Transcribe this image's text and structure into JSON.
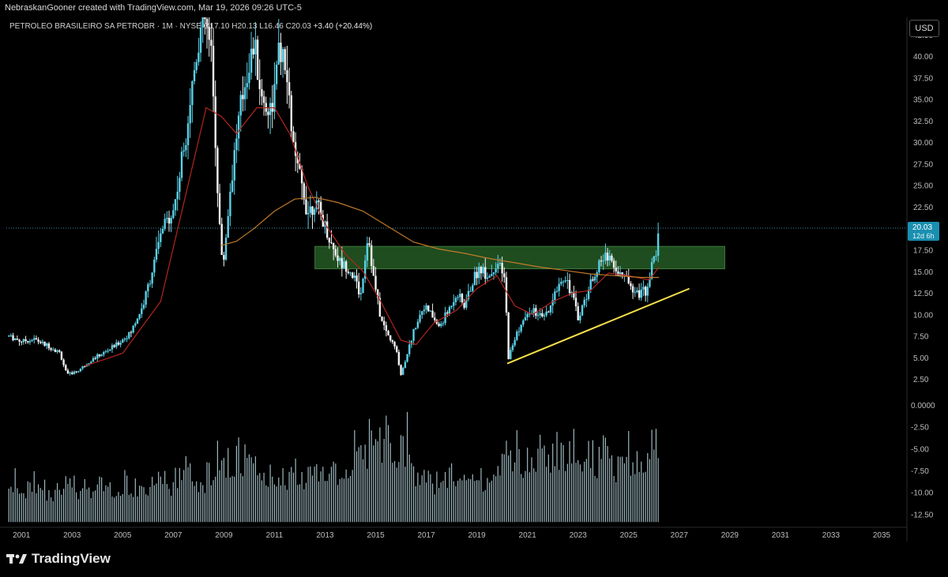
{
  "header": {
    "author_line": "NebraskanGooner created with TradingView.com, Mar 19, 2026 09:26 UTC-5"
  },
  "legend": {
    "symbol": "PETROLEO BRASILEIRO SA PETROBR · 1M · NYSE",
    "o_label": "O",
    "o_value": "17.10",
    "h_label": "H",
    "h_value": "20.13",
    "l_label": "L",
    "l_value": "16.46",
    "c_label": "C",
    "c_value": "20.03",
    "change": "+3.40 (+20.44%)"
  },
  "currency_button": "USD",
  "price_tag": {
    "value": "20.03",
    "countdown": "12d 6h"
  },
  "brand": {
    "name": "TradingView"
  },
  "colors": {
    "up": "#5ad1e8",
    "down": "#f2f2f2",
    "ma_fast": "#b3261e",
    "ma_slow": "#c07a2a",
    "zone": "#1f4d1f",
    "trendline": "#f5e04a",
    "volume": "#b9d8e0"
  },
  "chart_data": {
    "type": "candlestick",
    "timeframe": "1M",
    "x_ticks": [
      "2001",
      "2003",
      "2005",
      "2007",
      "2009",
      "2011",
      "2013",
      "2015",
      "2017",
      "2019",
      "2021",
      "2023",
      "2025",
      "2027",
      "2029",
      "2031",
      "2033",
      "2035"
    ],
    "price_ticks": [
      "42.50",
      "40.00",
      "37.50",
      "35.00",
      "32.50",
      "30.00",
      "27.50",
      "25.00",
      "22.50",
      "20.00",
      "17.50",
      "15.00",
      "12.50",
      "10.00",
      "7.50",
      "5.00",
      "2.50"
    ],
    "osc_ticks": [
      "0.0000",
      "-2.50",
      "-5.00",
      "-7.50",
      "-10.00",
      "-12.50"
    ],
    "price_ylim": [
      0.5,
      44.5
    ],
    "osc_ylim": [
      -14.0,
      1.0
    ],
    "xlim": [
      2000.4,
      2036.0
    ],
    "price_path": [
      [
        2000.5,
        7.5
      ],
      [
        2001.0,
        6.9
      ],
      [
        2001.5,
        7.1
      ],
      [
        2002.0,
        6.4
      ],
      [
        2002.5,
        5.6
      ],
      [
        2002.8,
        3.0
      ],
      [
        2003.2,
        3.4
      ],
      [
        2003.8,
        4.8
      ],
      [
        2004.3,
        5.6
      ],
      [
        2004.8,
        6.6
      ],
      [
        2005.3,
        7.8
      ],
      [
        2005.8,
        11.0
      ],
      [
        2006.2,
        15.5
      ],
      [
        2006.6,
        20.2
      ],
      [
        2007.0,
        22.0
      ],
      [
        2007.3,
        27.0
      ],
      [
        2007.6,
        33.5
      ],
      [
        2007.9,
        40.0
      ],
      [
        2008.2,
        45.0
      ],
      [
        2008.5,
        40.0
      ],
      [
        2008.8,
        22.0
      ],
      [
        2008.95,
        15.0
      ],
      [
        2009.3,
        26.0
      ],
      [
        2009.6,
        33.0
      ],
      [
        2009.9,
        38.0
      ],
      [
        2010.2,
        41.5
      ],
      [
        2010.5,
        35.0
      ],
      [
        2010.8,
        33.5
      ],
      [
        2011.0,
        36.0
      ],
      [
        2011.2,
        41.0
      ],
      [
        2011.5,
        37.0
      ],
      [
        2011.8,
        28.0
      ],
      [
        2012.0,
        26.0
      ],
      [
        2012.3,
        22.0
      ],
      [
        2012.6,
        23.0
      ],
      [
        2012.9,
        21.0
      ],
      [
        2013.2,
        18.5
      ],
      [
        2013.6,
        16.0
      ],
      [
        2013.9,
        15.5
      ],
      [
        2014.2,
        14.0
      ],
      [
        2014.4,
        12.0
      ],
      [
        2014.7,
        19.5
      ],
      [
        2014.9,
        14.5
      ],
      [
        2015.2,
        9.5
      ],
      [
        2015.5,
        7.5
      ],
      [
        2015.8,
        6.0
      ],
      [
        2016.0,
        3.0
      ],
      [
        2016.3,
        6.0
      ],
      [
        2016.6,
        9.0
      ],
      [
        2016.9,
        11.0
      ],
      [
        2017.2,
        10.0
      ],
      [
        2017.5,
        8.5
      ],
      [
        2017.8,
        10.0
      ],
      [
        2018.2,
        12.5
      ],
      [
        2018.5,
        11.0
      ],
      [
        2018.8,
        13.5
      ],
      [
        2019.1,
        15.5
      ],
      [
        2019.5,
        14.5
      ],
      [
        2019.8,
        16.0
      ],
      [
        2020.1,
        14.0
      ],
      [
        2020.25,
        5.0
      ],
      [
        2020.6,
        8.0
      ],
      [
        2020.9,
        9.5
      ],
      [
        2021.2,
        10.5
      ],
      [
        2021.6,
        9.5
      ],
      [
        2021.9,
        10.5
      ],
      [
        2022.2,
        13.5
      ],
      [
        2022.5,
        14.5
      ],
      [
        2022.8,
        12.0
      ],
      [
        2023.0,
        9.5
      ],
      [
        2023.3,
        12.0
      ],
      [
        2023.6,
        14.5
      ],
      [
        2023.9,
        16.0
      ],
      [
        2024.2,
        17.2
      ],
      [
        2024.5,
        15.0
      ],
      [
        2024.8,
        14.5
      ],
      [
        2025.1,
        13.5
      ],
      [
        2025.4,
        12.5
      ],
      [
        2025.7,
        12.8
      ],
      [
        2025.9,
        15.5
      ],
      [
        2026.1,
        17.2
      ],
      [
        2026.2,
        20.03
      ]
    ],
    "ma_fast_path": [
      [
        2003.5,
        4.0
      ],
      [
        2005.0,
        5.5
      ],
      [
        2006.5,
        11.5
      ],
      [
        2007.5,
        24.0
      ],
      [
        2008.3,
        34.0
      ],
      [
        2008.9,
        33.0
      ],
      [
        2009.5,
        31.0
      ],
      [
        2010.3,
        34.0
      ],
      [
        2011.0,
        34.0
      ],
      [
        2011.6,
        31.0
      ],
      [
        2012.3,
        25.0
      ],
      [
        2013.0,
        20.5
      ],
      [
        2013.8,
        17.0
      ],
      [
        2014.5,
        15.0
      ],
      [
        2015.2,
        11.5
      ],
      [
        2016.0,
        7.0
      ],
      [
        2016.6,
        6.5
      ],
      [
        2017.3,
        9.0
      ],
      [
        2018.2,
        10.5
      ],
      [
        2019.0,
        13.0
      ],
      [
        2019.8,
        14.5
      ],
      [
        2020.5,
        11.0
      ],
      [
        2021.2,
        10.0
      ],
      [
        2022.0,
        11.5
      ],
      [
        2022.8,
        12.5
      ],
      [
        2023.5,
        12.8
      ],
      [
        2024.2,
        14.8
      ],
      [
        2025.0,
        14.5
      ],
      [
        2025.8,
        14.0
      ],
      [
        2026.2,
        15.5
      ]
    ],
    "ma_slow_path": [
      [
        2008.9,
        18.0
      ],
      [
        2009.5,
        18.5
      ],
      [
        2010.2,
        20.0
      ],
      [
        2011.0,
        22.0
      ],
      [
        2011.8,
        23.4
      ],
      [
        2012.6,
        23.6
      ],
      [
        2013.5,
        23.0
      ],
      [
        2014.5,
        22.0
      ],
      [
        2015.5,
        20.2
      ],
      [
        2016.5,
        18.4
      ],
      [
        2017.5,
        17.6
      ],
      [
        2018.5,
        17.1
      ],
      [
        2019.5,
        16.5
      ],
      [
        2020.5,
        16.0
      ],
      [
        2021.5,
        15.5
      ],
      [
        2022.5,
        15.1
      ],
      [
        2023.5,
        14.7
      ],
      [
        2024.5,
        14.5
      ],
      [
        2025.5,
        14.3
      ],
      [
        2026.2,
        14.3
      ]
    ],
    "zone": {
      "x_start": 2012.6,
      "x_end": 2028.8,
      "y_low": 15.3,
      "y_high": 17.9
    },
    "trendline": {
      "x1": 2020.2,
      "y1": 4.3,
      "x2": 2027.4,
      "y2": 13.0
    },
    "current_price_line": 20.03,
    "volume_range": [
      -12.5,
      0.0
    ]
  }
}
